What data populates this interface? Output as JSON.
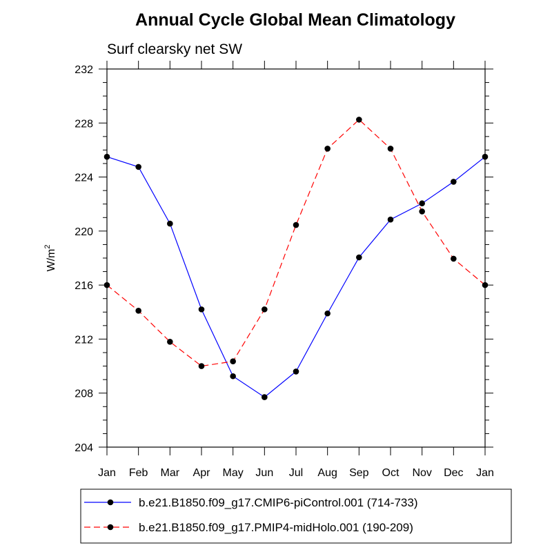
{
  "chart_data": {
    "type": "line",
    "title": "Annual Cycle Global Mean Climatology",
    "subtitle": "Surf clearsky net SW",
    "xlabel": "",
    "ylabel": "W/m",
    "ylabel_superscript": "2",
    "categories": [
      "Jan",
      "Feb",
      "Mar",
      "Apr",
      "May",
      "Jun",
      "Jul",
      "Aug",
      "Sep",
      "Oct",
      "Nov",
      "Dec",
      "Jan"
    ],
    "ylim": [
      204,
      232
    ],
    "yticks": [
      204,
      208,
      212,
      216,
      220,
      224,
      228,
      232
    ],
    "grid": false,
    "legend_position": "bottom",
    "series": [
      {
        "name": "b.e21.B1850.f09_g17.CMIP6-piControl.001 (714-733)",
        "color": "#0000ff",
        "line_style": "solid",
        "marker": "filled-circle",
        "values": [
          225.5,
          224.75,
          220.55,
          214.2,
          209.25,
          207.7,
          209.6,
          213.9,
          218.05,
          220.85,
          222.05,
          223.65,
          225.5
        ]
      },
      {
        "name": "b.e21.B1850.f09_g17.PMIP4-midHolo.001 (190-209)",
        "color": "#ff0000",
        "line_style": "dashed",
        "marker": "filled-circle",
        "values": [
          216.0,
          214.1,
          211.8,
          210.0,
          210.35,
          214.2,
          220.45,
          226.1,
          228.25,
          226.1,
          221.45,
          217.95,
          216.0
        ]
      }
    ]
  }
}
